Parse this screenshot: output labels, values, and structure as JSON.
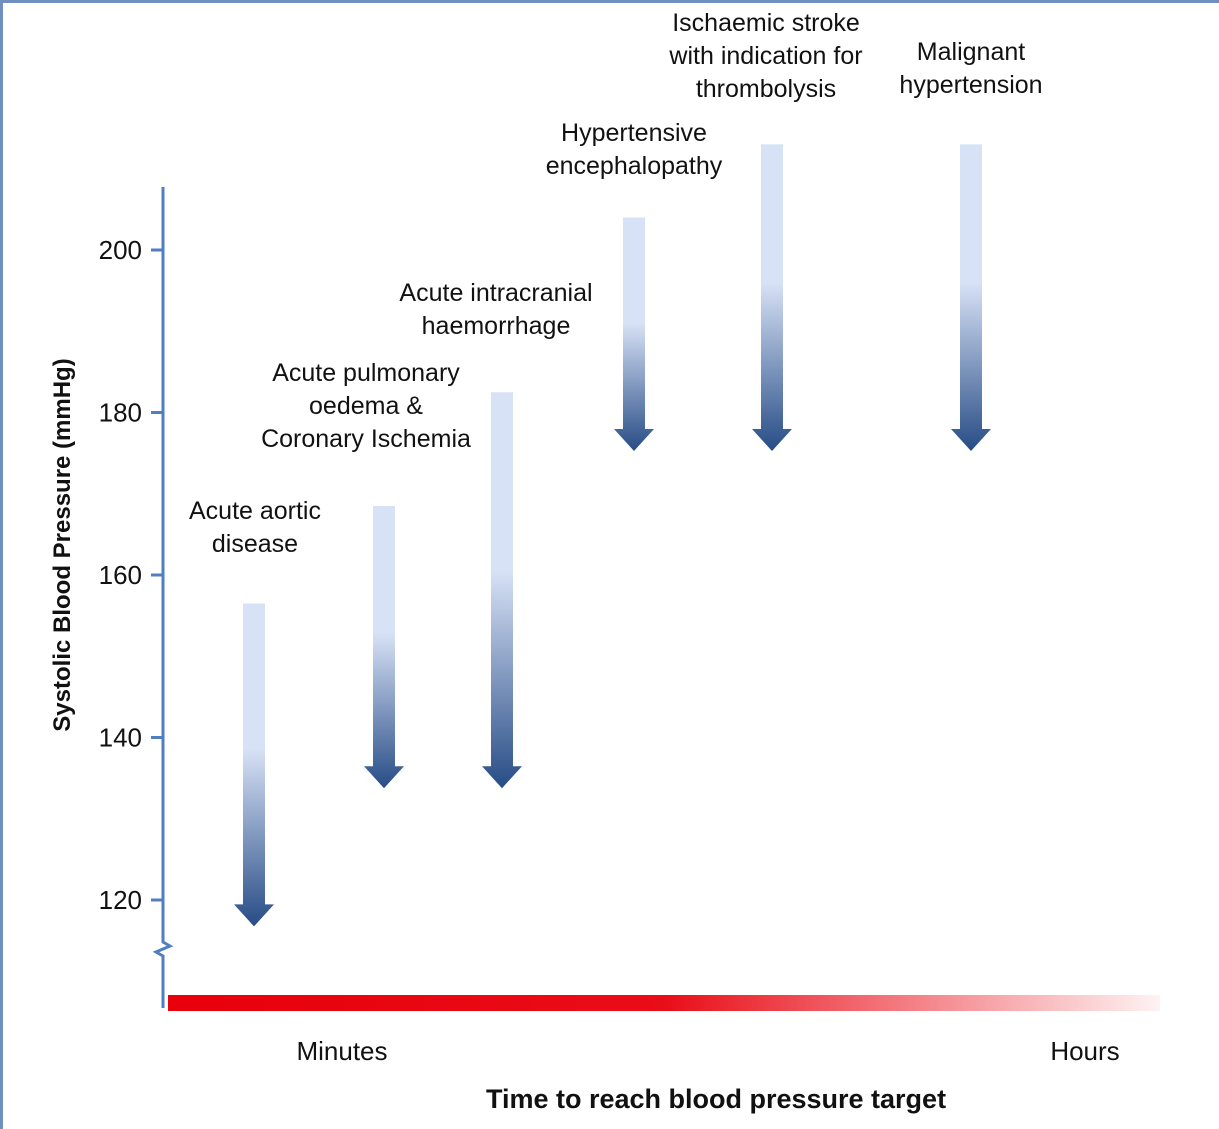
{
  "chart_data": {
    "type": "bar",
    "title": "",
    "xlabel": "Time to reach blood pressure target",
    "ylabel": "Systolic Blood Pressure (mmHg)",
    "ylim": [
      108,
      208
    ],
    "yticks": [
      120,
      140,
      160,
      180,
      200
    ],
    "x_axis_labels": {
      "start": "Minutes",
      "end": "Hours"
    },
    "axis_break": true,
    "grid": false,
    "colors": {
      "axis": "#4f7fc0",
      "arrow_light": "#d8e2f6",
      "arrow_dark": "#274c86",
      "time_bar": "#e8000b"
    },
    "categories": [
      {
        "label_lines": [
          "Acute aortic",
          "disease"
        ],
        "from": 156.5,
        "to": 117.5
      },
      {
        "label_lines": [
          "Acute pulmonary",
          "oedema &",
          "Coronary Ischemia"
        ],
        "from": 168.5,
        "to": 134.5
      },
      {
        "label_lines": [
          "Acute intracranial",
          "haemorrhage"
        ],
        "from": 182.5,
        "to": 134.5
      },
      {
        "label_lines": [
          "Hypertensive",
          "encephalopathy"
        ],
        "from": 204,
        "to": 176
      },
      {
        "label_lines": [
          "Ischaemic stroke",
          "with indication for",
          "thrombolysis"
        ],
        "from": 213,
        "to": 176
      },
      {
        "label_lines": [
          "Malignant",
          "hypertension"
        ],
        "from": 213,
        "to": 176
      }
    ]
  }
}
